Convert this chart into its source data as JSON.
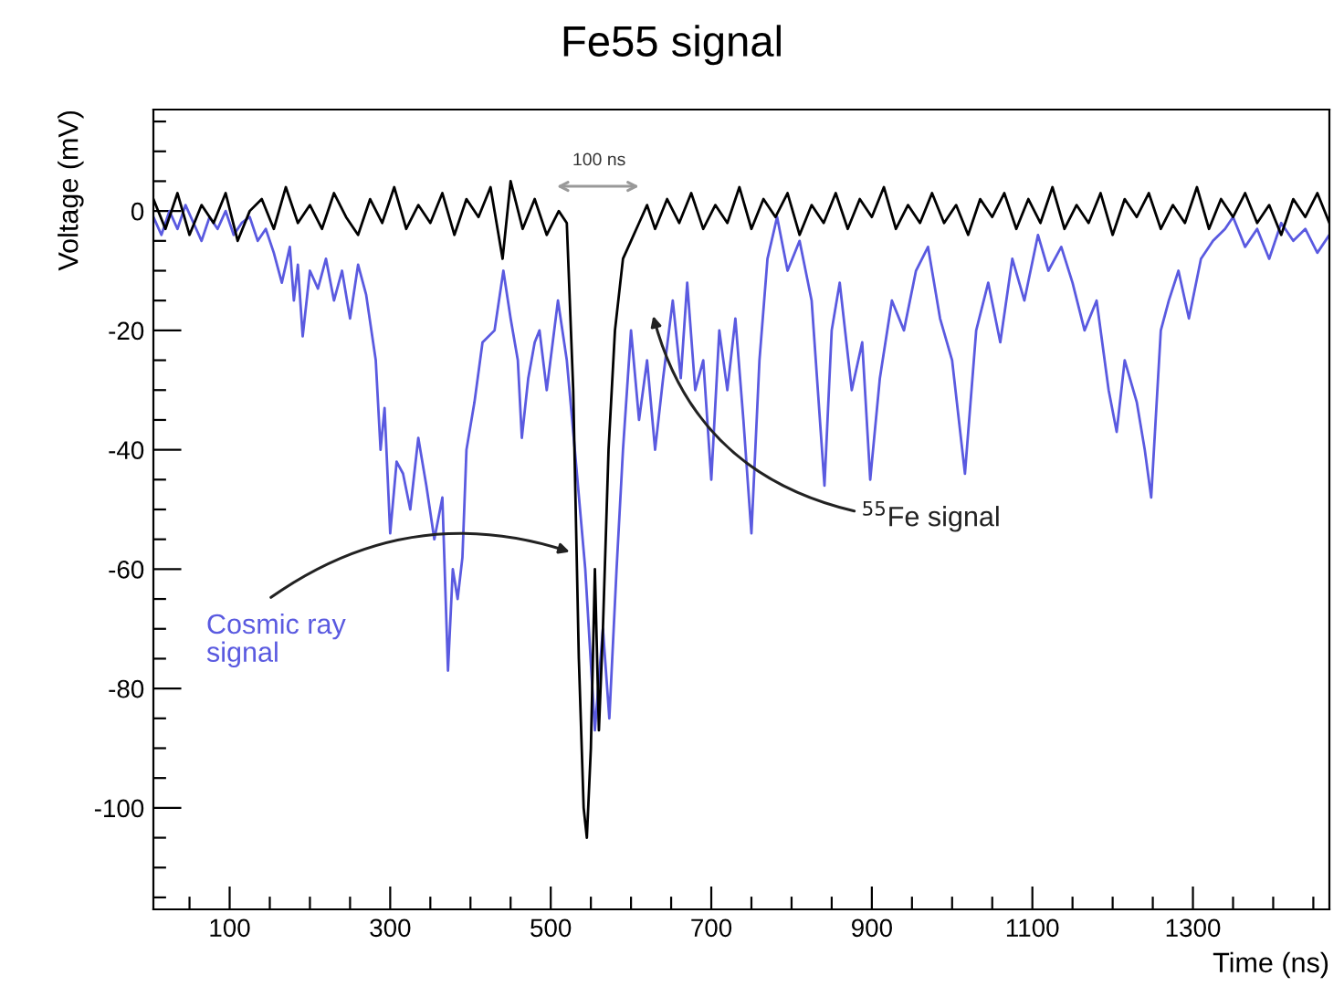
{
  "chart_data": {
    "type": "line",
    "title": "Fe55 signal",
    "xlabel": "Time (ns)",
    "ylabel": "Voltage (mV)",
    "xlim": [
      5,
      1470
    ],
    "ylim": [
      -117,
      17
    ],
    "xticks": [
      {
        "value": 50,
        "label": null
      },
      100,
      {
        "value": 150,
        "label": null
      },
      {
        "value": 200,
        "label": null
      },
      {
        "value": 250,
        "label": null
      },
      300,
      {
        "value": 350,
        "label": null
      },
      {
        "value": 400,
        "label": null
      },
      {
        "value": 450,
        "label": null
      },
      500,
      {
        "value": 550,
        "label": null
      },
      {
        "value": 600,
        "label": null
      },
      {
        "value": 650,
        "label": null
      },
      700,
      {
        "value": 750,
        "label": null
      },
      {
        "value": 800,
        "label": null
      },
      {
        "value": 850,
        "label": null
      },
      900,
      {
        "value": 950,
        "label": null
      },
      {
        "value": 1000,
        "label": null
      },
      {
        "value": 1050,
        "label": null
      },
      1100,
      {
        "value": 1150,
        "label": null
      },
      {
        "value": 1200,
        "label": null
      },
      {
        "value": 1250,
        "label": null
      },
      1300,
      {
        "value": 1350,
        "label": null
      },
      {
        "value": 1400,
        "label": null
      },
      {
        "value": 1450,
        "label": null
      }
    ],
    "yticks": [
      {
        "value": -115,
        "label": null
      },
      {
        "value": -110,
        "label": null
      },
      {
        "value": -105,
        "label": null
      },
      -100,
      {
        "value": -95,
        "label": null
      },
      {
        "value": -90,
        "label": null
      },
      {
        "value": -85,
        "label": null
      },
      -80,
      {
        "value": -75,
        "label": null
      },
      {
        "value": -70,
        "label": null
      },
      {
        "value": -65,
        "label": null
      },
      -60,
      {
        "value": -55,
        "label": null
      },
      {
        "value": -50,
        "label": null
      },
      {
        "value": -45,
        "label": null
      },
      -40,
      {
        "value": -35,
        "label": null
      },
      {
        "value": -30,
        "label": null
      },
      {
        "value": -25,
        "label": null
      },
      -20,
      {
        "value": -15,
        "label": null
      },
      {
        "value": -10,
        "label": null
      },
      {
        "value": -5,
        "label": null
      },
      0,
      {
        "value": 5,
        "label": null
      },
      {
        "value": 10,
        "label": null
      },
      {
        "value": 15,
        "label": null
      }
    ],
    "grid": false,
    "legend": false,
    "marker": "none",
    "line_style": "solid",
    "series": [
      {
        "color": "#5a5ae0",
        "x": [
          5,
          15,
          25,
          35,
          45,
          55,
          65,
          75,
          85,
          95,
          105,
          115,
          125,
          135,
          145,
          155,
          165,
          175,
          180,
          185,
          191,
          200,
          210,
          220,
          230,
          240,
          250,
          260,
          270,
          282,
          288,
          293,
          300,
          308,
          316,
          325,
          335,
          345,
          355,
          365,
          372,
          378,
          384,
          390,
          395,
          405,
          415,
          430,
          441,
          450,
          459,
          464,
          472,
          480,
          486,
          495,
          509,
          520,
          530,
          543,
          555,
          565,
          573,
          582,
          590,
          600,
          610,
          620,
          630,
          640,
          652,
          662,
          670,
          680,
          690,
          700,
          710,
          720,
          730,
          740,
          750,
          760,
          770,
          782,
          795,
          810,
          825,
          841,
          850,
          860,
          875,
          888,
          898,
          910,
          925,
          940,
          955,
          970,
          985,
          1000,
          1016,
          1030,
          1045,
          1060,
          1075,
          1090,
          1107,
          1120,
          1136,
          1150,
          1165,
          1180,
          1195,
          1205,
          1215,
          1230,
          1240,
          1248,
          1260,
          1270,
          1282,
          1295,
          1310,
          1325,
          1340,
          1350,
          1365,
          1380,
          1395,
          1410,
          1425,
          1440,
          1455,
          1470
        ],
        "values": [
          -1,
          -4,
          0,
          -3,
          1,
          -2,
          -5,
          -1,
          -3,
          0,
          -4,
          -2,
          -1,
          -5,
          -3,
          -7,
          -12,
          -6,
          -15,
          -9,
          -21,
          -10,
          -13,
          -8,
          -15,
          -10,
          -18,
          -9,
          -14,
          -25,
          -40,
          -33,
          -54,
          -42,
          -44,
          -50,
          -38,
          -46,
          -55,
          -48,
          -77,
          -60,
          -65,
          -58,
          -40,
          -32,
          -22,
          -20,
          -10,
          -18,
          -25,
          -38,
          -28,
          -22,
          -20,
          -30,
          -15,
          -25,
          -40,
          -60,
          -87,
          -70,
          -85,
          -60,
          -40,
          -20,
          -35,
          -25,
          -40,
          -28,
          -15,
          -28,
          -12,
          -30,
          -25,
          -45,
          -20,
          -30,
          -18,
          -35,
          -54,
          -25,
          -8,
          -1,
          -10,
          -5,
          -15,
          -46,
          -20,
          -12,
          -30,
          -22,
          -45,
          -28,
          -15,
          -20,
          -10,
          -6,
          -18,
          -25,
          -44,
          -20,
          -12,
          -22,
          -8,
          -15,
          -4,
          -10,
          -6,
          -12,
          -20,
          -15,
          -30,
          -37,
          -25,
          -32,
          -40,
          -48,
          -20,
          -15,
          -10,
          -18,
          -8,
          -5,
          -3,
          -1,
          -6,
          -3,
          -8,
          -2,
          -5,
          -3,
          -7,
          -4
        ]
      },
      {
        "color": "#000000",
        "x": [
          5,
          20,
          35,
          50,
          65,
          80,
          95,
          110,
          125,
          140,
          155,
          170,
          185,
          200,
          215,
          230,
          245,
          260,
          275,
          290,
          305,
          320,
          335,
          350,
          365,
          380,
          395,
          410,
          425,
          440,
          450,
          465,
          480,
          495,
          510,
          520,
          528,
          535,
          541,
          545,
          550,
          555,
          560,
          565,
          572,
          580,
          590,
          600,
          610,
          620,
          630,
          645,
          660,
          675,
          690,
          705,
          720,
          735,
          750,
          765,
          780,
          795,
          810,
          825,
          840,
          855,
          870,
          885,
          900,
          915,
          930,
          945,
          960,
          975,
          990,
          1005,
          1020,
          1035,
          1050,
          1065,
          1080,
          1095,
          1110,
          1125,
          1140,
          1155,
          1170,
          1185,
          1200,
          1215,
          1230,
          1245,
          1260,
          1275,
          1290,
          1305,
          1320,
          1335,
          1350,
          1365,
          1380,
          1395,
          1410,
          1425,
          1440,
          1455,
          1470
        ],
        "values": [
          2,
          -3,
          3,
          -4,
          1,
          -2,
          3,
          -5,
          0,
          2,
          -3,
          4,
          -2,
          1,
          -3,
          3,
          -1,
          -4,
          2,
          -2,
          4,
          -3,
          1,
          -2,
          3,
          -4,
          2,
          -1,
          4,
          -8,
          5,
          -3,
          2,
          -4,
          0,
          -2,
          -30,
          -75,
          -100,
          -105,
          -90,
          -60,
          -87,
          -70,
          -40,
          -20,
          -8,
          -5,
          -2,
          1,
          -3,
          2,
          -2,
          3,
          -3,
          1,
          -2,
          4,
          -3,
          2,
          -1,
          3,
          -4,
          1,
          -2,
          3,
          -3,
          2,
          -1,
          4,
          -3,
          1,
          -2,
          3,
          -2,
          1,
          -4,
          2,
          -1,
          3,
          -3,
          2,
          -2,
          4,
          -3,
          1,
          -2,
          3,
          -4,
          2,
          -1,
          3,
          -3,
          1,
          -2,
          4,
          -3,
          2,
          -1,
          3,
          -2,
          1,
          -4,
          2,
          -1,
          3,
          -2
        ]
      }
    ],
    "annotations": [
      "100 ns",
      "$^{55}$Fe signal",
      "Cosmic ray\nsignal"
    ]
  }
}
